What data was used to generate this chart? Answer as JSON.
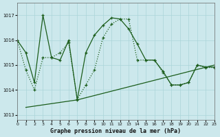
{
  "title": "Graphe pression niveau de la mer (hPa)",
  "background_color": "#cce8ec",
  "grid_color": "#aad4d8",
  "line_color": "#1a5c1a",
  "xlim": [
    0,
    23
  ],
  "ylim": [
    1012.8,
    1017.5
  ],
  "yticks": [
    1013,
    1014,
    1015,
    1016,
    1017
  ],
  "xticks": [
    0,
    1,
    2,
    3,
    4,
    5,
    6,
    7,
    8,
    9,
    10,
    11,
    12,
    13,
    14,
    15,
    16,
    17,
    18,
    19,
    20,
    21,
    22,
    23
  ],
  "line1_x": [
    0,
    1,
    2,
    3,
    4,
    5,
    6,
    7,
    8,
    9,
    10,
    11,
    12,
    13,
    14,
    15,
    16,
    17,
    18,
    19,
    20,
    21,
    22,
    23
  ],
  "line1_y": [
    1016.0,
    1015.5,
    1014.3,
    1017.0,
    1015.3,
    1015.2,
    1016.0,
    1013.6,
    1015.5,
    1016.2,
    1016.6,
    1016.9,
    1016.85,
    1016.45,
    1015.85,
    1015.2,
    1015.2,
    1014.75,
    1014.2,
    1014.2,
    1014.3,
    1015.0,
    1014.92,
    1014.92
  ],
  "line2_x": [
    0,
    1,
    2,
    3,
    4,
    5,
    6,
    7,
    8,
    9,
    10,
    11,
    12,
    13,
    14,
    15,
    16,
    17,
    18,
    19,
    20,
    21,
    22,
    23
  ],
  "line2_y": [
    1016.0,
    1014.8,
    1014.0,
    1015.3,
    1015.3,
    1015.5,
    1015.9,
    1013.62,
    1014.2,
    1014.8,
    1016.1,
    1016.65,
    1016.85,
    1016.85,
    1015.2,
    1015.2,
    1015.2,
    1014.7,
    1014.2,
    1014.2,
    1014.3,
    1015.0,
    1014.9,
    1014.9
  ],
  "line3_x": [
    1,
    7,
    23
  ],
  "line3_y": [
    1013.3,
    1013.6,
    1015.0
  ]
}
